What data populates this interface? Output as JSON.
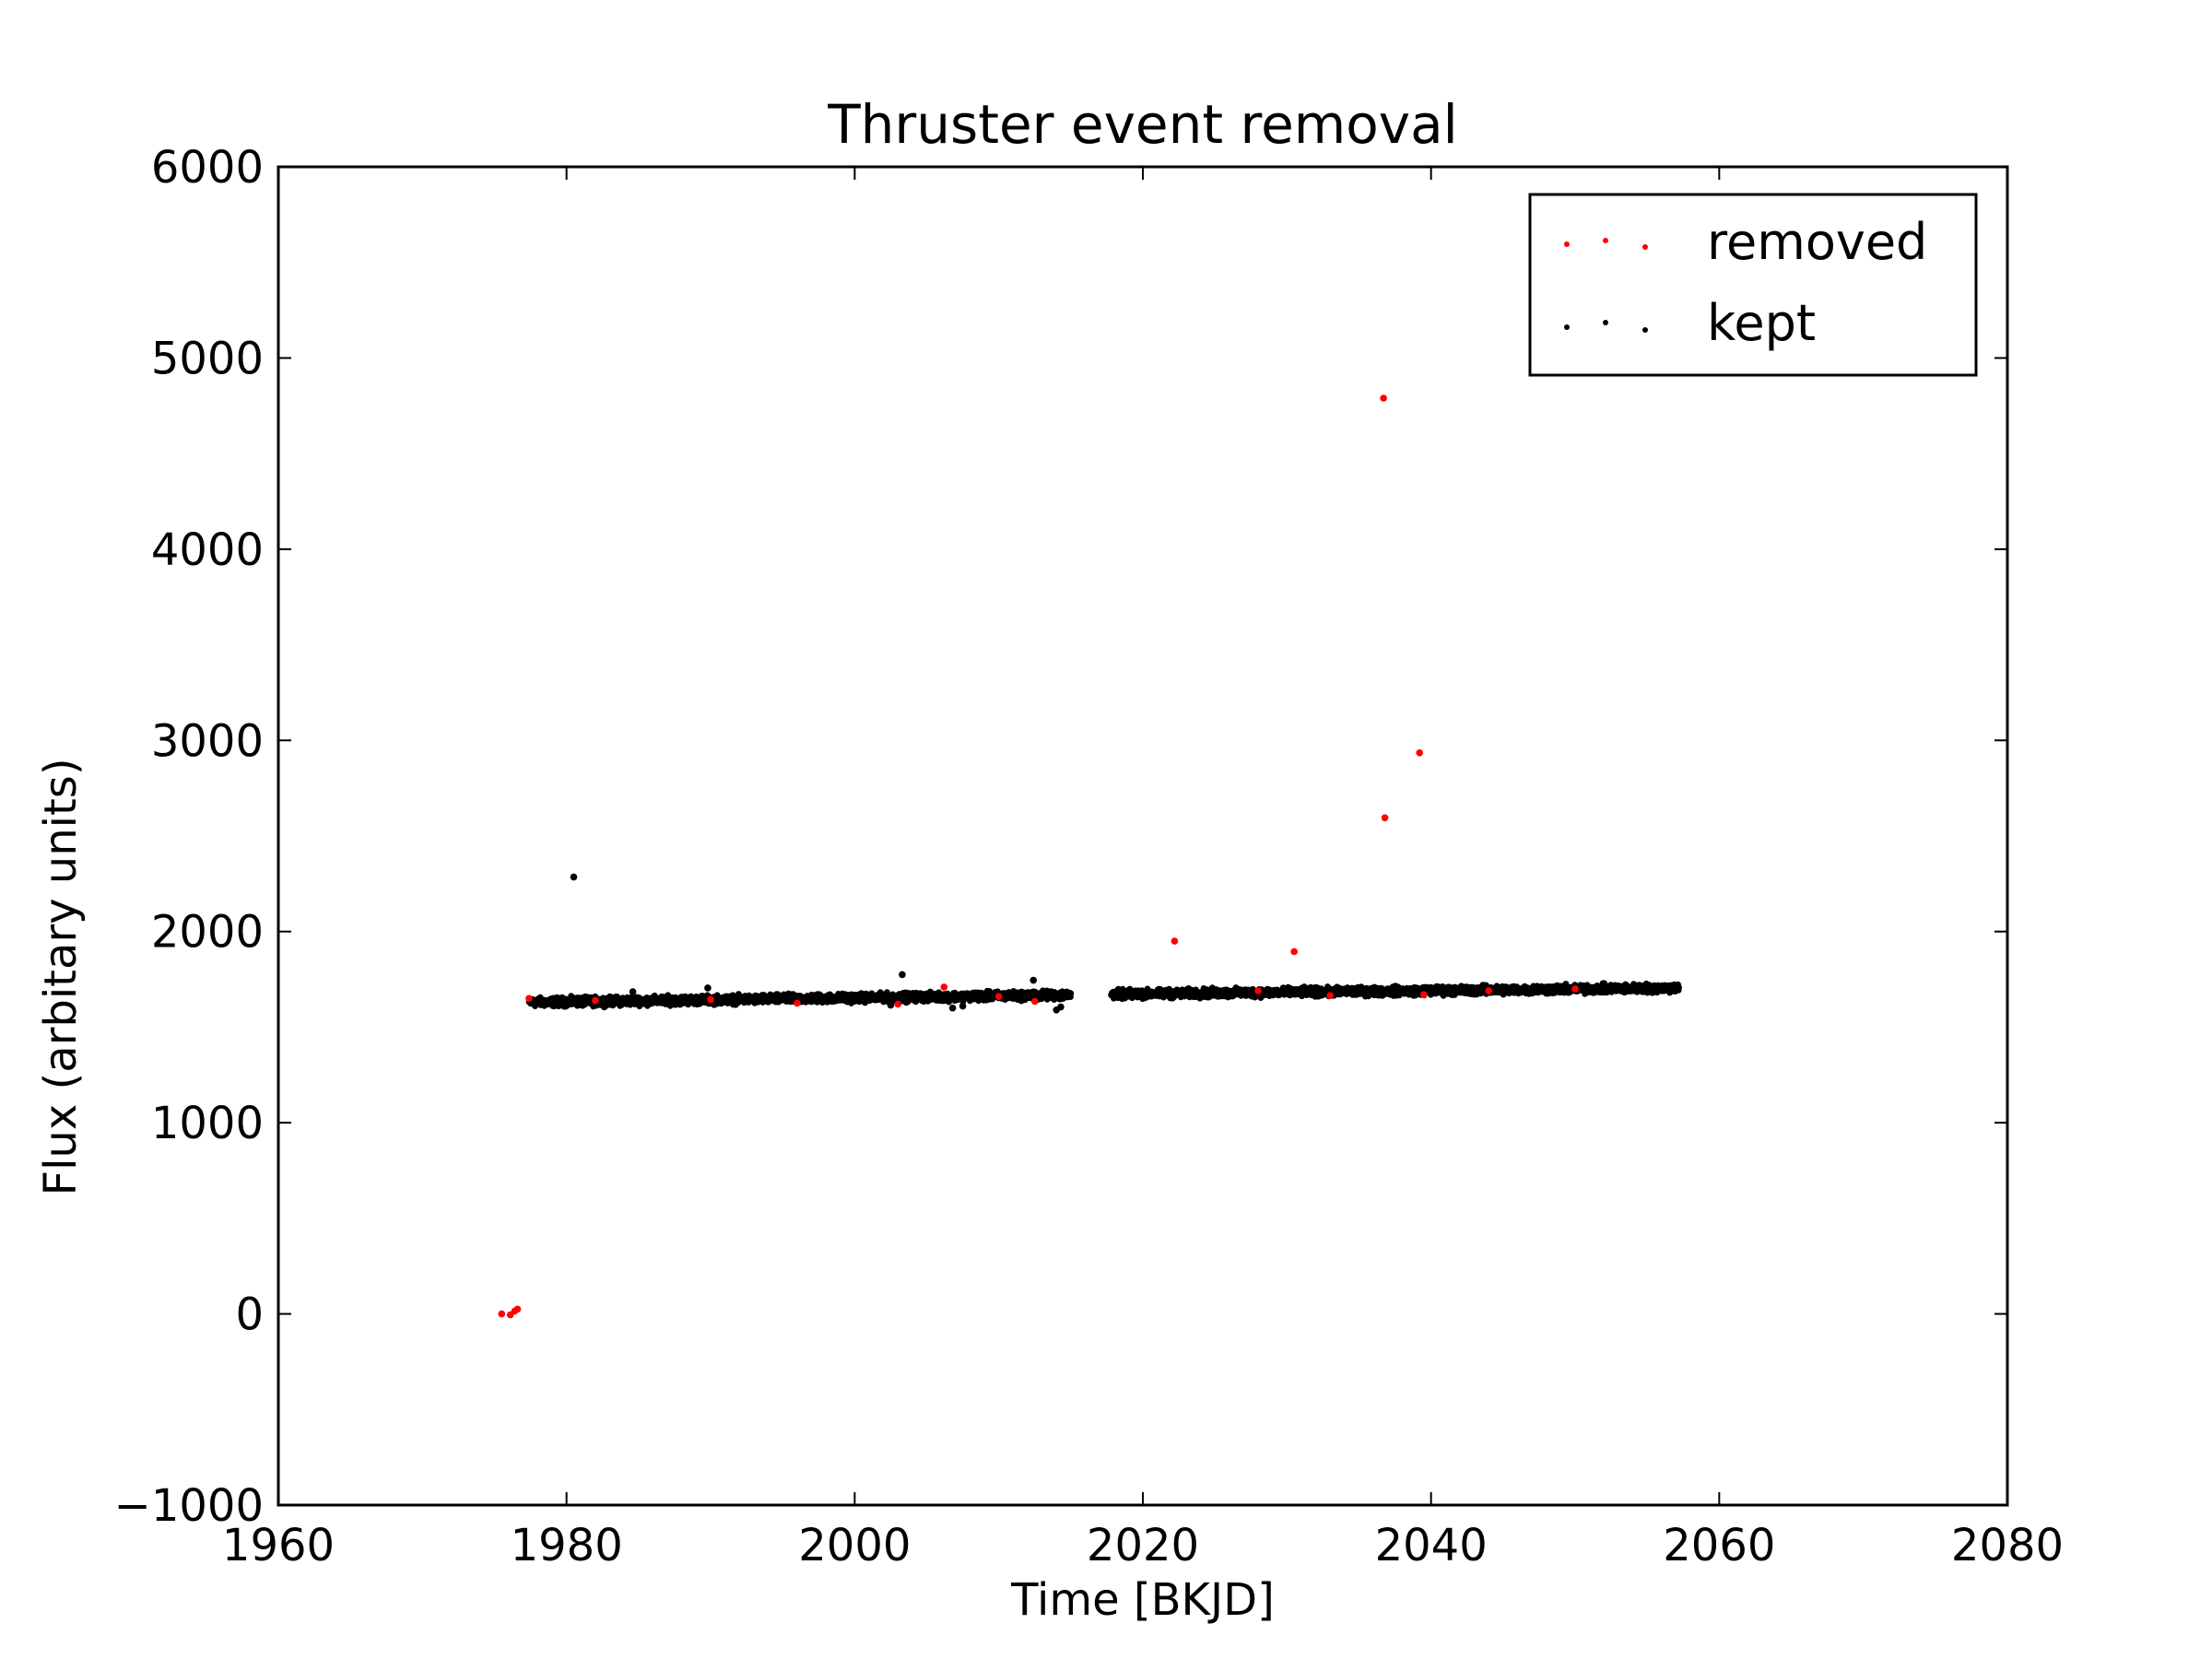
{
  "chart_data": {
    "type": "scatter",
    "title": "Thruster event removal",
    "xlabel": "Time [BKJD]",
    "ylabel": "Flux (arbitary units)",
    "xlim": [
      1960,
      2080
    ],
    "ylim": [
      -1000,
      6000
    ],
    "xticks": [
      1960,
      1980,
      2000,
      2020,
      2040,
      2060,
      2080
    ],
    "yticks": [
      -1000,
      0,
      1000,
      2000,
      3000,
      4000,
      5000,
      6000
    ],
    "ytick_labels": [
      "−1000",
      "0",
      "1000",
      "2000",
      "3000",
      "4000",
      "5000",
      "6000"
    ],
    "grid": false,
    "legend": {
      "position": "top-right",
      "entries": [
        "removed",
        "kept"
      ]
    },
    "series": [
      {
        "name": "removed",
        "color": "#ff0000",
        "points": [
          [
            1975.5,
            0
          ],
          [
            1976.1,
            -5
          ],
          [
            1976.4,
            15
          ],
          [
            1976.6,
            25
          ],
          [
            1977.4,
            1650
          ],
          [
            1982.0,
            1640
          ],
          [
            1990.0,
            1645
          ],
          [
            1996.0,
            1625
          ],
          [
            2003.0,
            1620
          ],
          [
            2006.2,
            1710
          ],
          [
            2010.0,
            1660
          ],
          [
            2012.5,
            1635
          ],
          [
            2022.2,
            1950
          ],
          [
            2028.0,
            1690
          ],
          [
            2030.5,
            1895
          ],
          [
            2033.0,
            1665
          ],
          [
            2036.7,
            4790
          ],
          [
            2036.8,
            2595
          ],
          [
            2039.2,
            2935
          ],
          [
            2039.5,
            1670
          ],
          [
            2044.0,
            1690
          ],
          [
            2050.0,
            1700
          ]
        ]
      },
      {
        "name": "kept",
        "color": "#000000",
        "points": [
          [
            1980.5,
            2285
          ],
          [
            1984.6,
            1685
          ],
          [
            1989.8,
            1705
          ],
          [
            2003.3,
            1775
          ],
          [
            2012.4,
            1745
          ],
          [
            2006.8,
            1600
          ],
          [
            2007.5,
            1610
          ],
          [
            2014.0,
            1590
          ],
          [
            2014.3,
            1605
          ],
          [
            2002.5,
            1615
          ]
        ],
        "segments": [
          {
            "x_start": 1977.4,
            "x_end": 2015.0,
            "y_start": 1630,
            "y_end": 1668,
            "spread": 22,
            "step": 0.02
          },
          {
            "x_start": 2017.8,
            "x_end": 2057.2,
            "y_start": 1672,
            "y_end": 1705,
            "spread": 22,
            "step": 0.02
          }
        ]
      }
    ]
  }
}
